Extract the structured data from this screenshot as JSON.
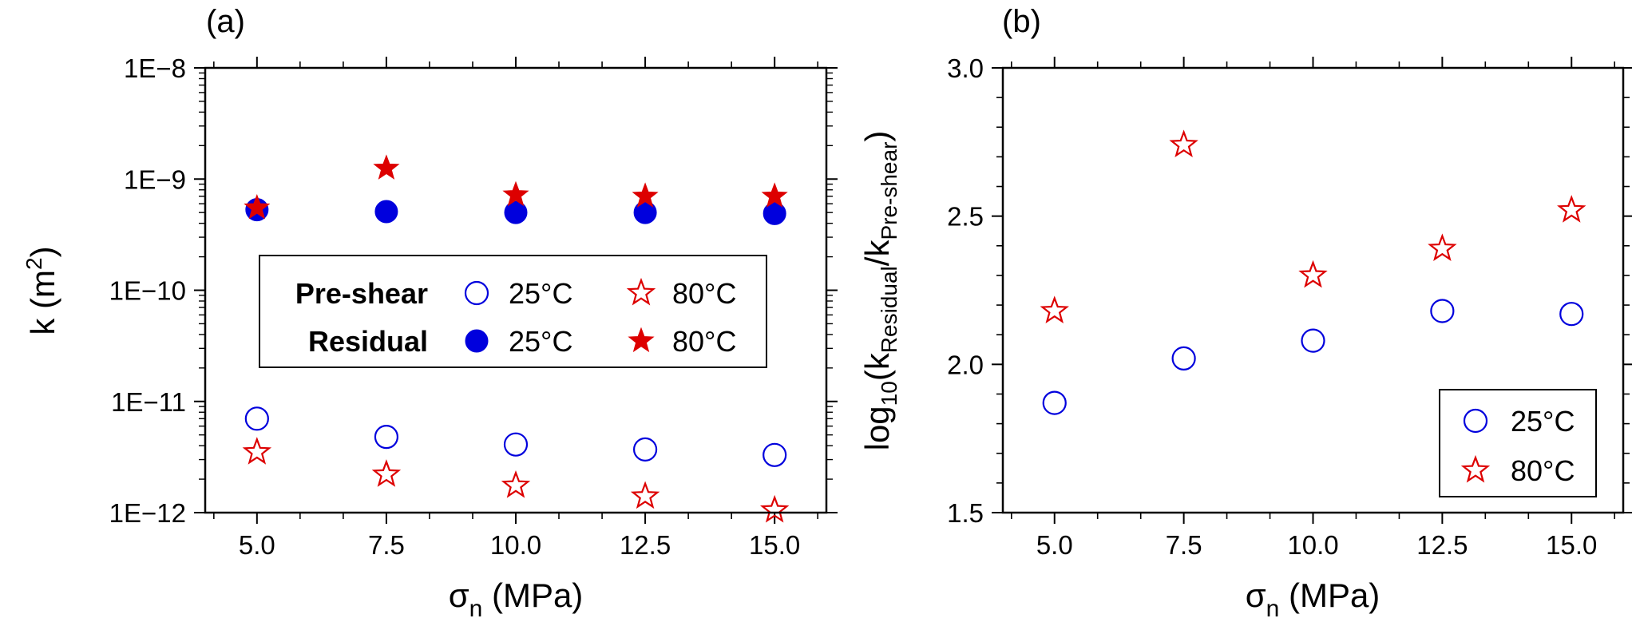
{
  "chart_data": [
    {
      "type": "scatter",
      "panel_label": "(a)",
      "x_label_main": "σ",
      "x_label_sub": "n",
      "x_label_unit": " (MPa)",
      "y_label_main": "k (m",
      "y_label_sup": "2",
      "y_label_close": ")",
      "y_scale": "log",
      "xlim": [
        4.0,
        16.0
      ],
      "ylim": [
        1e-12,
        1e-08
      ],
      "x_ticks": [
        5.0,
        7.5,
        10.0,
        12.5,
        15.0
      ],
      "x_tick_labels": [
        "5.0",
        "7.5",
        "10.0",
        "12.5",
        "15.0"
      ],
      "y_ticks": [
        1e-12,
        1e-11,
        1e-10,
        1e-09,
        1e-08
      ],
      "y_tick_labels": [
        "1E−12",
        "1E−11",
        "1E−10",
        "1E−9",
        "1E−8"
      ],
      "series": [
        {
          "name": "Pre-shear 25°C",
          "marker": "open-circle",
          "color": "#0000dd",
          "x": [
            5.0,
            7.5,
            10.0,
            12.5,
            15.0
          ],
          "y": [
            7e-12,
            4.8e-12,
            4.1e-12,
            3.7e-12,
            3.3e-12
          ]
        },
        {
          "name": "Pre-shear 80°C",
          "marker": "open-star",
          "color": "#dd0000",
          "x": [
            5.0,
            7.5,
            10.0,
            12.5,
            15.0
          ],
          "y": [
            3.5e-12,
            2.2e-12,
            1.75e-12,
            1.4e-12,
            1.05e-12
          ]
        },
        {
          "name": "Residual 25°C",
          "marker": "filled-circle",
          "color": "#0000dd",
          "x": [
            5.0,
            7.5,
            10.0,
            12.5,
            15.0
          ],
          "y": [
            5.3e-10,
            5.1e-10,
            5e-10,
            5e-10,
            4.9e-10
          ]
        },
        {
          "name": "Residual 80°C",
          "marker": "filled-star",
          "color": "#dd0000",
          "x": [
            5.0,
            7.5,
            10.0,
            12.5,
            15.0
          ],
          "y": [
            5.5e-10,
            1.25e-09,
            7.2e-10,
            7e-10,
            7e-10
          ]
        }
      ],
      "legend": {
        "placement": "center",
        "row_titles": [
          "Pre-shear",
          "Residual"
        ],
        "labels": [
          "25°C",
          "80°C",
          "25°C",
          "80°C"
        ]
      }
    },
    {
      "type": "scatter",
      "panel_label": "(b)",
      "x_label_main": "σ",
      "x_label_sub": "n",
      "x_label_unit": " (MPa)",
      "y_label_pre": "log",
      "y_label_sub1": "10",
      "y_label_mid": "(k",
      "y_label_sub2": "Residual",
      "y_label_slash": "/k",
      "y_label_sub3": "Pre-shear",
      "y_label_close": ")",
      "y_scale": "linear",
      "xlim": [
        4.0,
        16.0
      ],
      "ylim": [
        1.5,
        3.0
      ],
      "x_ticks": [
        5.0,
        7.5,
        10.0,
        12.5,
        15.0
      ],
      "x_tick_labels": [
        "5.0",
        "7.5",
        "10.0",
        "12.5",
        "15.0"
      ],
      "y_ticks": [
        1.5,
        2.0,
        2.5,
        3.0
      ],
      "y_tick_labels": [
        "1.5",
        "2.0",
        "2.5",
        "3.0"
      ],
      "series": [
        {
          "name": "25°C",
          "marker": "open-circle",
          "color": "#0000dd",
          "x": [
            5.0,
            7.5,
            10.0,
            12.5,
            15.0
          ],
          "y": [
            1.87,
            2.02,
            2.08,
            2.18,
            2.17
          ]
        },
        {
          "name": "80°C",
          "marker": "open-star",
          "color": "#dd0000",
          "x": [
            5.0,
            7.5,
            10.0,
            12.5,
            15.0
          ],
          "y": [
            2.18,
            2.74,
            2.3,
            2.39,
            2.52
          ]
        }
      ],
      "legend": {
        "placement": "bottom-right",
        "labels": [
          "25°C",
          "80°C"
        ]
      }
    }
  ]
}
